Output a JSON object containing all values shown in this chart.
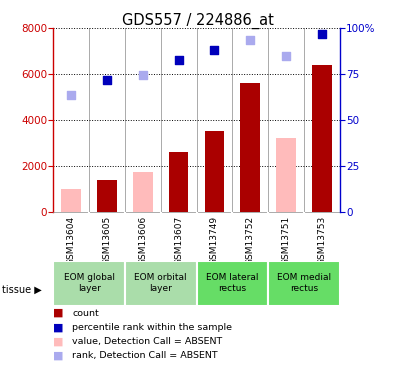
{
  "title": "GDS557 / 224886_at",
  "samples": [
    "GSM13604",
    "GSM13605",
    "GSM13606",
    "GSM13607",
    "GSM13749",
    "GSM13752",
    "GSM13751",
    "GSM13753"
  ],
  "bars_dark_red": [
    null,
    1400,
    null,
    2600,
    3500,
    5600,
    null,
    6400
  ],
  "bars_light_pink": [
    1000,
    null,
    1750,
    null,
    null,
    null,
    3200,
    null
  ],
  "dots_dark_blue": [
    null,
    5750,
    null,
    6600,
    7050,
    null,
    null,
    7750
  ],
  "dots_light_blue": [
    5100,
    null,
    5950,
    null,
    null,
    7500,
    6800,
    null
  ],
  "ylim_left": [
    0,
    8000
  ],
  "ylim_right": [
    0,
    100
  ],
  "yticks_left": [
    0,
    2000,
    4000,
    6000,
    8000
  ],
  "yticks_right": [
    0,
    25,
    50,
    75,
    100
  ],
  "ytick_labels_right": [
    "0",
    "25",
    "50",
    "75",
    "100%"
  ],
  "left_axis_color": "#cc0000",
  "right_axis_color": "#0000cc",
  "bar_dark_red_color": "#aa0000",
  "bar_light_pink_color": "#ffbbbb",
  "dot_dark_blue_color": "#0000bb",
  "dot_light_blue_color": "#aaaaee",
  "bg_color": "#ffffff",
  "tissue_groups": [
    {
      "start": 0,
      "end": 2,
      "label": "EOM global\nlayer",
      "color": "#aaddaa"
    },
    {
      "start": 2,
      "end": 4,
      "label": "EOM orbital\nlayer",
      "color": "#aaddaa"
    },
    {
      "start": 4,
      "end": 6,
      "label": "EOM lateral\nrectus",
      "color": "#66dd66"
    },
    {
      "start": 6,
      "end": 8,
      "label": "EOM medial\nrectus",
      "color": "#66dd66"
    }
  ],
  "legend_items": [
    {
      "color": "#aa0000",
      "label": "count"
    },
    {
      "color": "#0000bb",
      "label": "percentile rank within the sample"
    },
    {
      "color": "#ffbbbb",
      "label": "value, Detection Call = ABSENT"
    },
    {
      "color": "#aaaaee",
      "label": "rank, Detection Call = ABSENT"
    }
  ]
}
